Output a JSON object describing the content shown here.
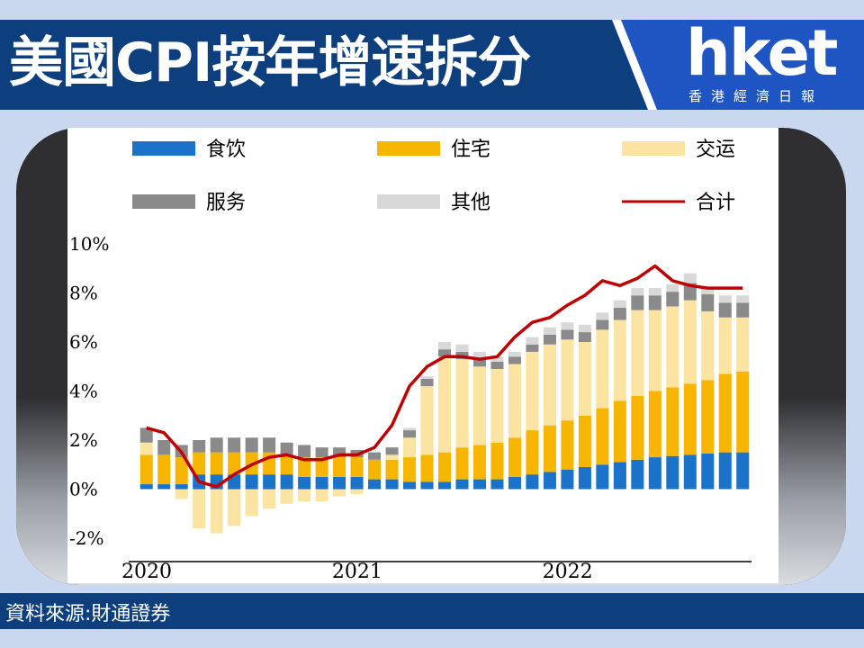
{
  "header": {
    "title": "美國CPI按年增速拆分",
    "logo_word": "hket",
    "logo_sub": "香港經濟日報"
  },
  "footer": {
    "source": "資料來源:財通證券"
  },
  "colors": {
    "header_blue": "#0d3f7e",
    "logo_blue": "#1f55c3",
    "food": "#1a73c9",
    "housing": "#f7b500",
    "transport": "#fbe3a2",
    "services": "#8a8a8a",
    "other": "#d8d8d8",
    "total": "#c00000"
  },
  "chart_data": {
    "type": "bar",
    "stacked": true,
    "ylim": [
      -2,
      10
    ],
    "yticks": [
      "10%",
      "8%",
      "6%",
      "4%",
      "2%",
      "0%",
      "-2%"
    ],
    "ytick_values": [
      10,
      8,
      6,
      4,
      2,
      0,
      -2
    ],
    "xlabels": [
      {
        "label": "2020",
        "at_index": 0
      },
      {
        "label": "2021",
        "at_index": 12
      },
      {
        "label": "2022",
        "at_index": 24
      }
    ],
    "legend": [
      "食饮",
      "住宅",
      "交运",
      "服务",
      "其他",
      "合计"
    ],
    "series": [
      {
        "name": "食饮",
        "values": [
          0.2,
          0.2,
          0.2,
          0.6,
          0.6,
          0.6,
          0.6,
          0.6,
          0.6,
          0.5,
          0.5,
          0.5,
          0.5,
          0.4,
          0.4,
          0.3,
          0.3,
          0.3,
          0.4,
          0.4,
          0.4,
          0.5,
          0.6,
          0.7,
          0.8,
          0.9,
          1.0,
          1.1,
          1.2,
          1.3,
          1.35,
          1.4,
          1.45,
          1.5,
          1.5
        ]
      },
      {
        "name": "住宅",
        "values": [
          1.2,
          1.2,
          1.1,
          0.9,
          0.9,
          0.9,
          0.9,
          0.9,
          0.8,
          0.8,
          0.8,
          0.8,
          0.8,
          0.8,
          0.8,
          1.0,
          1.1,
          1.2,
          1.3,
          1.4,
          1.5,
          1.6,
          1.8,
          1.9,
          2.0,
          2.1,
          2.3,
          2.5,
          2.6,
          2.7,
          2.8,
          2.9,
          3.0,
          3.2,
          3.3
        ]
      },
      {
        "name": "交运",
        "values": [
          0.5,
          0.0,
          -0.4,
          -1.6,
          -1.8,
          -1.5,
          -1.1,
          -0.8,
          -0.6,
          -0.5,
          -0.5,
          -0.3,
          -0.2,
          0.0,
          0.2,
          0.8,
          2.8,
          3.9,
          3.6,
          3.2,
          3.0,
          3.0,
          3.2,
          3.3,
          3.3,
          3.0,
          3.2,
          3.3,
          3.5,
          3.3,
          3.3,
          3.4,
          2.8,
          2.3,
          2.2
        ]
      },
      {
        "name": "服务",
        "values": [
          0.6,
          0.6,
          0.5,
          0.5,
          0.6,
          0.6,
          0.6,
          0.6,
          0.5,
          0.5,
          0.4,
          0.4,
          0.3,
          0.3,
          0.3,
          0.3,
          0.3,
          0.3,
          0.3,
          0.3,
          0.3,
          0.3,
          0.3,
          0.4,
          0.4,
          0.4,
          0.4,
          0.5,
          0.6,
          0.6,
          0.6,
          0.7,
          0.7,
          0.6,
          0.6
        ]
      },
      {
        "name": "其他",
        "values": [
          0.0,
          0.0,
          0.0,
          0.0,
          0.0,
          0.0,
          0.0,
          0.0,
          0.0,
          0.0,
          0.0,
          0.0,
          0.0,
          0.0,
          0.0,
          0.1,
          0.1,
          0.3,
          0.3,
          0.3,
          0.2,
          0.2,
          0.3,
          0.3,
          0.3,
          0.3,
          0.3,
          0.3,
          0.3,
          0.3,
          0.3,
          0.4,
          0.3,
          0.3,
          0.3
        ]
      },
      {
        "name": "合计",
        "type": "line",
        "values": [
          2.5,
          2.3,
          1.5,
          0.3,
          0.1,
          0.6,
          1.0,
          1.3,
          1.4,
          1.2,
          1.2,
          1.4,
          1.4,
          1.7,
          2.6,
          4.2,
          5.0,
          5.4,
          5.4,
          5.3,
          5.4,
          6.2,
          6.8,
          7.0,
          7.5,
          7.9,
          8.5,
          8.3,
          8.6,
          9.1,
          8.5,
          8.3,
          8.2,
          8.2,
          8.2
        ]
      }
    ]
  }
}
